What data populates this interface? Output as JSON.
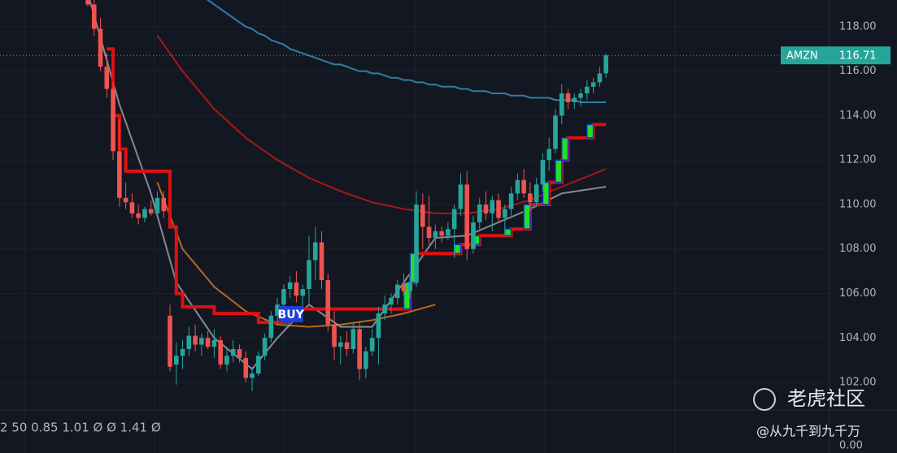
{
  "chart_data": {
    "type": "candlestick",
    "symbol": "AMZN",
    "last_price": 116.71,
    "up_color": "#26a69a",
    "down_color": "#ef5350",
    "ylim": [
      100.76,
      119.2
    ],
    "yticks": [
      {
        "value": 102,
        "label": "102.00"
      },
      {
        "value": 104,
        "label": "104.00"
      },
      {
        "value": 106,
        "label": "106.00"
      },
      {
        "value": 108,
        "label": "108.00"
      },
      {
        "value": 110,
        "label": "110.00"
      },
      {
        "value": 112,
        "label": "112.00"
      },
      {
        "value": 114,
        "label": "114.00"
      },
      {
        "value": 116,
        "label": "116.00"
      },
      {
        "value": 118,
        "label": "118.00"
      }
    ],
    "grid": true,
    "open": [
      119.3,
      119.0,
      117.9,
      116.2,
      115.2,
      112.4,
      110.3,
      110.1,
      109.6,
      109.4,
      109.8,
      109.6,
      110.3,
      105.0,
      102.8,
      103.2,
      103.5,
      104.1,
      103.7,
      104.0,
      103.6,
      103.9,
      102.8,
      103.2,
      103.5,
      103.1,
      102.2,
      102.4,
      103.2,
      104.0,
      105.0,
      105.5,
      106.2,
      106.5,
      105.9,
      106.2,
      107.5,
      108.3,
      106.6,
      104.6,
      103.6,
      103.8,
      103.5,
      104.4,
      102.6,
      103.4,
      104.0,
      105.1,
      105.5,
      105.8,
      106.4,
      106.1,
      106.5,
      110.0,
      109.0,
      108.5,
      108.8,
      108.6,
      108.9,
      109.8,
      110.9,
      108.0,
      109.2,
      110.0,
      109.6,
      110.2,
      109.4,
      109.8,
      110.5,
      111.1,
      110.5,
      110.1,
      110.9,
      112.0,
      112.5,
      114.0,
      115.0,
      114.6,
      114.8,
      115.0,
      115.3,
      115.5,
      115.9
    ],
    "high": [
      119.5,
      119.2,
      118.4,
      116.8,
      115.5,
      113.8,
      111.0,
      110.5,
      110.0,
      109.9,
      110.2,
      110.6,
      110.6,
      105.5,
      103.8,
      103.9,
      104.5,
      104.6,
      104.2,
      104.3,
      104.4,
      104.1,
      103.5,
      103.9,
      103.7,
      103.4,
      102.7,
      103.4,
      104.2,
      105.2,
      105.8,
      106.4,
      106.8,
      107.0,
      106.4,
      108.6,
      109.0,
      108.8,
      106.9,
      105.2,
      104.1,
      104.3,
      104.7,
      104.7,
      103.6,
      104.4,
      105.4,
      105.9,
      106.0,
      106.6,
      106.9,
      106.8,
      110.6,
      110.5,
      110.4,
      109.1,
      109.0,
      109.2,
      110.0,
      111.4,
      111.5,
      109.5,
      110.3,
      110.6,
      110.4,
      110.5,
      110.0,
      110.8,
      111.4,
      111.6,
      111.0,
      111.2,
      112.3,
      113.0,
      114.3,
      115.4,
      115.2,
      115.0,
      115.2,
      115.6,
      115.7,
      116.2,
      116.8
    ],
    "low": [
      118.9,
      117.6,
      116.0,
      114.8,
      112.0,
      109.9,
      109.8,
      109.4,
      109.1,
      109.2,
      109.5,
      109.5,
      109.4,
      102.5,
      101.9,
      102.6,
      103.2,
      103.4,
      103.2,
      103.5,
      103.1,
      102.6,
      102.5,
      102.9,
      102.9,
      102.0,
      101.6,
      102.3,
      103.0,
      103.8,
      104.6,
      105.1,
      105.8,
      105.6,
      105.2,
      105.5,
      106.6,
      106.2,
      104.3,
      103.0,
      102.8,
      103.2,
      103.3,
      102.1,
      102.2,
      103.2,
      102.8,
      104.8,
      105.1,
      105.5,
      105.9,
      105.8,
      106.3,
      108.0,
      108.2,
      108.0,
      108.3,
      108.4,
      107.6,
      109.5,
      107.5,
      107.8,
      108.9,
      109.3,
      108.8,
      109.2,
      108.6,
      109.5,
      110.2,
      110.3,
      109.7,
      109.9,
      110.6,
      111.5,
      112.3,
      113.6,
      114.3,
      114.3,
      114.4,
      114.7,
      115.0,
      115.3,
      115.7
    ],
    "close": [
      119.0,
      117.9,
      116.2,
      115.2,
      112.4,
      110.3,
      110.1,
      109.6,
      109.4,
      109.8,
      109.6,
      110.3,
      109.7,
      102.7,
      103.2,
      103.5,
      104.1,
      103.7,
      104.0,
      103.6,
      103.9,
      102.8,
      103.2,
      103.5,
      103.1,
      102.2,
      102.4,
      103.2,
      104.0,
      105.0,
      105.5,
      106.2,
      106.5,
      105.9,
      106.2,
      107.5,
      108.3,
      106.6,
      104.6,
      103.6,
      103.8,
      103.5,
      104.4,
      102.6,
      103.4,
      104.0,
      105.1,
      105.5,
      105.8,
      106.4,
      106.1,
      106.5,
      110.0,
      109.0,
      108.5,
      108.8,
      108.6,
      108.9,
      109.8,
      110.9,
      108.0,
      109.2,
      110.0,
      109.6,
      110.2,
      109.4,
      109.8,
      110.5,
      111.1,
      110.5,
      110.1,
      110.9,
      112.0,
      112.5,
      114.0,
      115.0,
      114.6,
      114.8,
      115.0,
      115.3,
      115.5,
      115.9,
      116.71
    ],
    "ma": {
      "color": "#2e7fa6",
      "values": [
        null,
        null,
        null,
        null,
        null,
        null,
        null,
        null,
        null,
        null,
        null,
        null,
        null,
        null,
        null,
        null,
        null,
        null,
        119.4,
        119.2,
        119.0,
        118.8,
        118.6,
        118.4,
        118.2,
        118.0,
        117.9,
        117.7,
        117.6,
        117.4,
        117.3,
        117.2,
        117.0,
        116.9,
        116.8,
        116.7,
        116.6,
        116.5,
        116.4,
        116.3,
        116.3,
        116.2,
        116.1,
        116.0,
        116.0,
        115.9,
        115.9,
        115.8,
        115.7,
        115.7,
        115.6,
        115.6,
        115.5,
        115.5,
        115.4,
        115.4,
        115.3,
        115.3,
        115.3,
        115.2,
        115.2,
        115.1,
        115.1,
        115.1,
        115.0,
        115.0,
        115.0,
        114.9,
        114.9,
        114.9,
        114.8,
        114.8,
        114.8,
        114.8,
        114.7,
        114.7,
        114.7,
        114.7,
        114.6,
        114.6,
        114.6,
        114.6,
        114.6
      ]
    },
    "stop": {
      "color": "#e01010",
      "rise_color": "#22e022",
      "values": [
        null,
        null,
        null,
        117.0,
        114.0,
        112.5,
        111.5,
        111.5,
        111.5,
        111.5,
        111.5,
        111.5,
        111.5,
        109.0,
        106.0,
        105.4,
        105.4,
        105.4,
        105.4,
        105.4,
        105.1,
        105.1,
        105.1,
        105.1,
        105.1,
        105.1,
        105.1,
        104.7,
        104.7,
        104.7,
        104.7,
        104.7,
        105.3,
        105.3,
        105.3,
        105.3,
        105.3,
        105.3,
        105.3,
        105.3,
        105.3,
        105.3,
        105.3,
        105.3,
        105.3,
        105.3,
        105.3,
        105.3,
        105.3,
        105.3,
        105.3,
        106.5,
        107.8,
        107.8,
        107.8,
        107.8,
        107.8,
        107.8,
        107.8,
        108.2,
        108.2,
        108.2,
        108.6,
        108.6,
        108.6,
        108.6,
        108.6,
        108.9,
        108.9,
        108.9,
        110.0,
        110.0,
        110.0,
        111.0,
        111.0,
        112.0,
        113.0,
        113.0,
        113.0,
        113.0,
        113.6,
        113.6,
        113.6
      ]
    },
    "lines": [
      {
        "color": "#c41818",
        "x": [
          11,
          15,
          20,
          25,
          30,
          35,
          40,
          45,
          50,
          55,
          60,
          65,
          70,
          75,
          82
        ],
        "values": [
          117.6,
          116.0,
          114.3,
          113.0,
          112.0,
          111.2,
          110.6,
          110.1,
          109.8,
          109.6,
          109.6,
          109.8,
          110.2,
          110.8,
          111.6
        ]
      },
      {
        "color": "#d07a1a",
        "x": [
          11,
          15,
          20,
          25,
          30,
          35,
          40,
          45,
          50,
          55
        ],
        "values": [
          111.0,
          108.0,
          106.3,
          105.2,
          104.6,
          104.5,
          104.6,
          104.8,
          105.1,
          105.5
        ]
      },
      {
        "color": "#9a9ea8",
        "x": [
          0,
          5,
          10,
          14,
          20,
          26,
          30,
          35,
          40,
          45,
          50,
          55,
          60,
          65,
          70,
          75,
          82
        ],
        "values": [
          119.5,
          114.5,
          110.5,
          106.5,
          104.0,
          102.6,
          104.0,
          105.5,
          104.5,
          104.5,
          106.5,
          108.5,
          108.6,
          109.2,
          109.8,
          110.5,
          110.8
        ]
      }
    ],
    "signal": {
      "label": "BUY",
      "index": 32
    },
    "lower_pane": {
      "text": "2 50 0.85 1.01 Ø Ø 1.41 Ø",
      "ytick": {
        "value": 0,
        "label": "0.00"
      }
    }
  },
  "watermark": {
    "title": "老虎社区",
    "author": "@从九千到九千万"
  }
}
